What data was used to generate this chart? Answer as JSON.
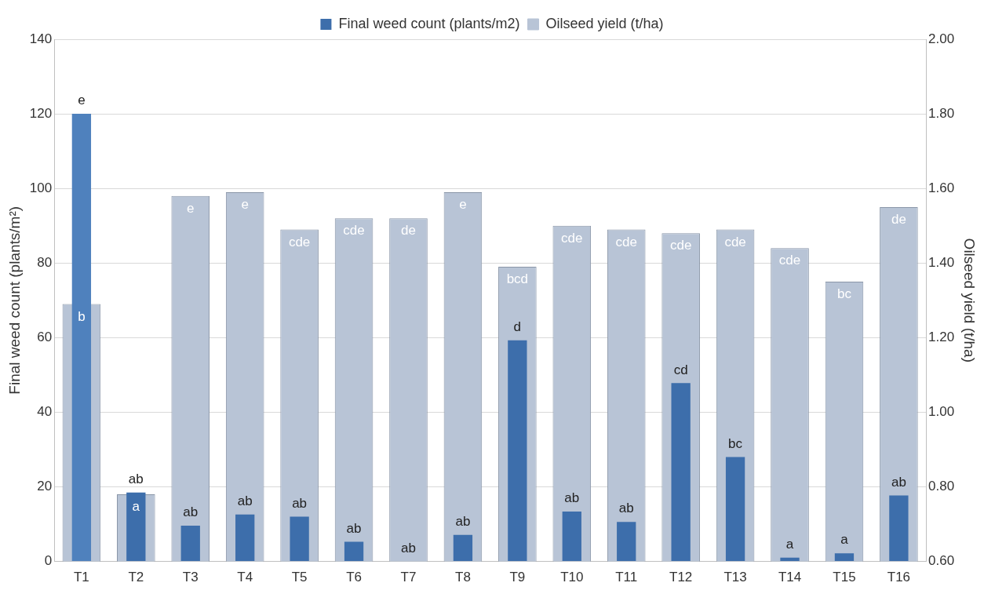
{
  "chart_data": {
    "type": "bar",
    "categories": [
      "T1",
      "T2",
      "T3",
      "T4",
      "T5",
      "T6",
      "T7",
      "T8",
      "T9",
      "T10",
      "T11",
      "T12",
      "T13",
      "T14",
      "T15",
      "T16"
    ],
    "ylabel": "Final weed count (plants/m²)",
    "y2label": "Oilseed yield (t/ha)",
    "ylim": [
      0,
      140
    ],
    "yticks": [
      0,
      20,
      40,
      60,
      80,
      100,
      120,
      140
    ],
    "y2lim": [
      0.6,
      2.0
    ],
    "y2ticks": [
      {
        "value": 0.6,
        "label": "0.60"
      },
      {
        "value": 0.8,
        "label": "0.80"
      },
      {
        "value": 1.0,
        "label": "1.00"
      },
      {
        "value": 1.2,
        "label": "1.20"
      },
      {
        "value": 1.4,
        "label": "1.40"
      },
      {
        "value": 1.6,
        "label": "1.60"
      },
      {
        "value": 1.8,
        "label": "1.80"
      },
      {
        "value": 2.0,
        "label": "2.00"
      }
    ],
    "grid": "y",
    "legend": "top",
    "series": [
      {
        "name": "Final weed count (plants/m2)",
        "color": "#3d6eab",
        "colors": [
          "#4f81bd",
          "#3d6eab",
          "#3d6eab",
          "#3d6eab",
          "#3d6eab",
          "#3d6eab",
          "#3d6eab",
          "#3d6eab",
          "#3d6eab",
          "#3d6eab",
          "#3d6eab",
          "#3d6eab",
          "#3d6eab",
          "#3d6eab",
          "#3d6eab",
          "#3d6eab"
        ],
        "values": [
          120,
          18.5,
          9.6,
          12.6,
          12,
          5.3,
          0,
          7.1,
          59.3,
          13.4,
          10.6,
          47.8,
          28,
          1,
          2.2,
          17.7
        ],
        "value_labels": [
          "e",
          "ab",
          "ab",
          "ab",
          "ab",
          "ab",
          "ab",
          "ab",
          "d",
          "ab",
          "ab",
          "cd",
          "bc",
          "a",
          "a",
          "ab"
        ]
      },
      {
        "name": "Oilseed yield (t/ha)",
        "color": "#b8c4d6",
        "axis": "y2",
        "values": [
          1.29,
          0.78,
          1.58,
          1.59,
          1.49,
          1.52,
          1.52,
          1.59,
          1.39,
          1.5,
          1.49,
          1.48,
          1.49,
          1.44,
          1.35,
          1.55
        ],
        "value_labels": [
          "b",
          "a",
          "e",
          "e",
          "cde",
          "cde",
          "de",
          "e",
          "bcd",
          "cde",
          "cde",
          "cde",
          "cde",
          "cde",
          "bc",
          "de"
        ]
      }
    ]
  }
}
